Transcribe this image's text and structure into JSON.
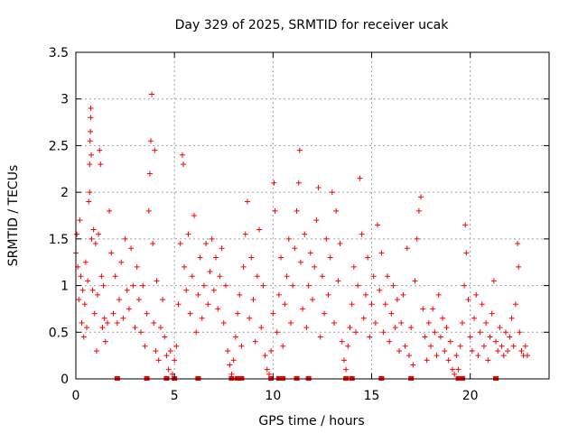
{
  "chart_data": {
    "type": "scatter",
    "title": "Day 329 of 2025, SRMTID for receiver ucak",
    "xlabel": "GPS time / hours",
    "ylabel": "SRMTID / TECUs",
    "xlim": [
      0,
      24
    ],
    "ylim": [
      0,
      3.5
    ],
    "x_ticks": [
      0,
      5,
      10,
      15,
      20
    ],
    "x_tick_labels": [
      "0",
      "5",
      "10",
      "15",
      "20"
    ],
    "y_ticks": [
      0,
      0.5,
      1,
      1.5,
      2,
      2.5,
      3,
      3.5
    ],
    "y_tick_labels": [
      "0",
      "0.5",
      "1",
      "1.5",
      "2",
      "2.5",
      "3",
      "3.5"
    ],
    "grid": true,
    "marker": "plus",
    "series": [
      {
        "name": "SRMTID",
        "color": "#ff0000",
        "points": [
          [
            0.0,
            1.35
          ],
          [
            0.05,
            1.55
          ],
          [
            0.1,
            1.2
          ],
          [
            0.15,
            0.85
          ],
          [
            0.2,
            1.7
          ],
          [
            0.25,
            1.1
          ],
          [
            0.3,
            0.6
          ],
          [
            0.35,
            0.95
          ],
          [
            0.4,
            0.45
          ],
          [
            0.45,
            0.8
          ],
          [
            0.5,
            1.25
          ],
          [
            0.55,
            0.55
          ],
          [
            0.6,
            1.05
          ],
          [
            0.65,
            1.9
          ],
          [
            0.7,
            2.0
          ],
          [
            0.7,
            2.3
          ],
          [
            0.72,
            2.55
          ],
          [
            0.74,
            2.65
          ],
          [
            0.75,
            2.8
          ],
          [
            0.76,
            2.9
          ],
          [
            0.78,
            2.4
          ],
          [
            0.8,
            1.5
          ],
          [
            0.85,
            0.95
          ],
          [
            0.9,
            1.6
          ],
          [
            0.95,
            0.7
          ],
          [
            1.0,
            1.45
          ],
          [
            1.05,
            0.3
          ],
          [
            1.1,
            0.9
          ],
          [
            1.15,
            1.55
          ],
          [
            1.2,
            2.45
          ],
          [
            1.25,
            2.3
          ],
          [
            1.3,
            1.1
          ],
          [
            1.35,
            0.55
          ],
          [
            1.4,
            1.0
          ],
          [
            1.45,
            0.65
          ],
          [
            1.5,
            0.4
          ],
          [
            1.6,
            0.6
          ],
          [
            1.7,
            1.8
          ],
          [
            1.8,
            1.35
          ],
          [
            1.9,
            0.7
          ],
          [
            2.0,
            1.1
          ],
          [
            2.1,
            0.6
          ],
          [
            2.2,
            0.85
          ],
          [
            2.3,
            1.25
          ],
          [
            2.4,
            0.65
          ],
          [
            2.5,
            1.5
          ],
          [
            2.6,
            0.95
          ],
          [
            2.7,
            0.75
          ],
          [
            2.8,
            1.4
          ],
          [
            2.9,
            1.0
          ],
          [
            3.0,
            0.55
          ],
          [
            3.1,
            1.2
          ],
          [
            3.2,
            0.85
          ],
          [
            3.3,
            0.5
          ],
          [
            3.4,
            1.0
          ],
          [
            3.5,
            0.35
          ],
          [
            3.6,
            0.7
          ],
          [
            3.7,
            1.8
          ],
          [
            3.75,
            2.2
          ],
          [
            3.8,
            2.55
          ],
          [
            3.85,
            3.05
          ],
          [
            3.9,
            1.45
          ],
          [
            3.95,
            0.6
          ],
          [
            4.0,
            2.45
          ],
          [
            4.05,
            0.3
          ],
          [
            4.1,
            1.05
          ],
          [
            4.2,
            0.2
          ],
          [
            4.3,
            0.55
          ],
          [
            4.4,
            0.85
          ],
          [
            4.5,
            0.45
          ],
          [
            4.6,
            0.25
          ],
          [
            4.7,
            0.1
          ],
          [
            4.8,
            0.3
          ],
          [
            4.9,
            0.05
          ],
          [
            5.0,
            0.2
          ],
          [
            5.1,
            0.35
          ],
          [
            5.2,
            0.8
          ],
          [
            5.3,
            1.45
          ],
          [
            5.4,
            2.4
          ],
          [
            5.45,
            2.3
          ],
          [
            5.5,
            1.2
          ],
          [
            5.6,
            0.95
          ],
          [
            5.7,
            1.55
          ],
          [
            5.8,
            0.7
          ],
          [
            5.9,
            1.1
          ],
          [
            6.0,
            1.75
          ],
          [
            6.1,
            0.5
          ],
          [
            6.2,
            0.9
          ],
          [
            6.3,
            1.3
          ],
          [
            6.4,
            0.65
          ],
          [
            6.5,
            1.0
          ],
          [
            6.6,
            1.45
          ],
          [
            6.7,
            0.8
          ],
          [
            6.8,
            1.15
          ],
          [
            6.9,
            1.5
          ],
          [
            7.0,
            0.95
          ],
          [
            7.1,
            1.3
          ],
          [
            7.2,
            0.75
          ],
          [
            7.3,
            1.1
          ],
          [
            7.4,
            1.4
          ],
          [
            7.5,
            0.6
          ],
          [
            7.6,
            1.0
          ],
          [
            7.7,
            0.3
          ],
          [
            7.8,
            0.15
          ],
          [
            7.9,
            0.05
          ],
          [
            8.0,
            0.2
          ],
          [
            8.1,
            0.45
          ],
          [
            8.2,
            0.7
          ],
          [
            8.3,
            0.9
          ],
          [
            8.4,
            0.35
          ],
          [
            8.5,
            1.2
          ],
          [
            8.6,
            1.55
          ],
          [
            8.7,
            1.9
          ],
          [
            8.8,
            0.65
          ],
          [
            8.9,
            1.3
          ],
          [
            9.0,
            0.85
          ],
          [
            9.1,
            0.4
          ],
          [
            9.2,
            1.1
          ],
          [
            9.3,
            1.6
          ],
          [
            9.4,
            0.55
          ],
          [
            9.5,
            1.0
          ],
          [
            9.6,
            0.25
          ],
          [
            9.7,
            0.1
          ],
          [
            9.8,
            0.05
          ],
          [
            9.9,
            0.3
          ],
          [
            10.0,
            0.7
          ],
          [
            10.05,
            2.1
          ],
          [
            10.1,
            1.8
          ],
          [
            10.2,
            0.5
          ],
          [
            10.3,
            0.9
          ],
          [
            10.4,
            1.3
          ],
          [
            10.5,
            0.35
          ],
          [
            10.6,
            0.8
          ],
          [
            10.7,
            1.1
          ],
          [
            10.8,
            1.5
          ],
          [
            10.9,
            0.6
          ],
          [
            11.0,
            1.0
          ],
          [
            11.1,
            1.4
          ],
          [
            11.2,
            1.8
          ],
          [
            11.3,
            2.1
          ],
          [
            11.35,
            2.45
          ],
          [
            11.4,
            1.25
          ],
          [
            11.5,
            0.75
          ],
          [
            11.6,
            1.55
          ],
          [
            11.7,
            0.55
          ],
          [
            11.8,
            1.0
          ],
          [
            11.9,
            1.35
          ],
          [
            12.0,
            0.85
          ],
          [
            12.1,
            1.2
          ],
          [
            12.2,
            1.7
          ],
          [
            12.3,
            2.05
          ],
          [
            12.4,
            0.45
          ],
          [
            12.5,
            1.1
          ],
          [
            12.6,
            0.7
          ],
          [
            12.7,
            1.5
          ],
          [
            12.8,
            0.9
          ],
          [
            12.9,
            1.3
          ],
          [
            13.0,
            2.0
          ],
          [
            13.1,
            0.6
          ],
          [
            13.2,
            1.8
          ],
          [
            13.3,
            1.05
          ],
          [
            13.4,
            1.45
          ],
          [
            13.5,
            0.4
          ],
          [
            13.6,
            0.2
          ],
          [
            13.7,
            0.1
          ],
          [
            13.8,
            0.35
          ],
          [
            13.9,
            0.55
          ],
          [
            14.0,
            0.8
          ],
          [
            14.1,
            1.2
          ],
          [
            14.2,
            0.5
          ],
          [
            14.3,
            1.0
          ],
          [
            14.4,
            2.15
          ],
          [
            14.5,
            1.55
          ],
          [
            14.6,
            0.65
          ],
          [
            14.7,
            0.9
          ],
          [
            14.8,
            1.3
          ],
          [
            14.9,
            0.45
          ],
          [
            15.0,
            0.8
          ],
          [
            15.1,
            1.1
          ],
          [
            15.2,
            0.6
          ],
          [
            15.3,
            1.65
          ],
          [
            15.4,
            0.95
          ],
          [
            15.5,
            1.35
          ],
          [
            15.6,
            0.5
          ],
          [
            15.7,
            0.8
          ],
          [
            15.8,
            1.1
          ],
          [
            15.9,
            0.4
          ],
          [
            16.0,
            0.7
          ],
          [
            16.1,
            1.0
          ],
          [
            16.2,
            0.55
          ],
          [
            16.3,
            0.85
          ],
          [
            16.4,
            0.3
          ],
          [
            16.5,
            0.6
          ],
          [
            16.6,
            0.9
          ],
          [
            16.7,
            0.35
          ],
          [
            16.8,
            1.4
          ],
          [
            16.9,
            0.25
          ],
          [
            17.0,
            0.55
          ],
          [
            17.1,
            0.15
          ],
          [
            17.2,
            1.05
          ],
          [
            17.3,
            1.5
          ],
          [
            17.4,
            1.8
          ],
          [
            17.5,
            1.95
          ],
          [
            17.6,
            0.75
          ],
          [
            17.7,
            0.45
          ],
          [
            17.8,
            0.2
          ],
          [
            17.9,
            0.6
          ],
          [
            18.0,
            0.35
          ],
          [
            18.1,
            0.75
          ],
          [
            18.2,
            0.5
          ],
          [
            18.3,
            0.25
          ],
          [
            18.4,
            0.9
          ],
          [
            18.5,
            0.45
          ],
          [
            18.6,
            0.65
          ],
          [
            18.7,
            0.3
          ],
          [
            18.8,
            0.55
          ],
          [
            18.9,
            0.2
          ],
          [
            19.0,
            0.4
          ],
          [
            19.1,
            0.1
          ],
          [
            19.2,
            0.05
          ],
          [
            19.3,
            0.25
          ],
          [
            19.4,
            0.1
          ],
          [
            19.5,
            0.35
          ],
          [
            19.6,
            0.6
          ],
          [
            19.7,
            1.0
          ],
          [
            19.75,
            1.65
          ],
          [
            19.8,
            1.35
          ],
          [
            19.9,
            0.85
          ],
          [
            20.0,
            0.45
          ],
          [
            20.1,
            0.3
          ],
          [
            20.2,
            0.65
          ],
          [
            20.3,
            0.9
          ],
          [
            20.4,
            0.25
          ],
          [
            20.5,
            0.5
          ],
          [
            20.6,
            0.8
          ],
          [
            20.7,
            0.35
          ],
          [
            20.8,
            0.6
          ],
          [
            20.9,
            0.2
          ],
          [
            21.0,
            0.45
          ],
          [
            21.1,
            0.7
          ],
          [
            21.2,
            1.05
          ],
          [
            21.3,
            0.4
          ],
          [
            21.4,
            0.3
          ],
          [
            21.5,
            0.55
          ],
          [
            21.6,
            0.35
          ],
          [
            21.7,
            0.25
          ],
          [
            21.8,
            0.5
          ],
          [
            21.9,
            0.3
          ],
          [
            22.0,
            0.45
          ],
          [
            22.1,
            0.65
          ],
          [
            22.2,
            0.35
          ],
          [
            22.3,
            0.8
          ],
          [
            22.4,
            1.45
          ],
          [
            22.45,
            1.2
          ],
          [
            22.5,
            0.5
          ],
          [
            22.6,
            0.3
          ],
          [
            22.7,
            0.25
          ],
          [
            22.8,
            0.35
          ],
          [
            22.9,
            0.25
          ]
        ]
      }
    ],
    "zero_points": [
      2.1,
      3.6,
      4.6,
      5.0,
      6.2,
      7.9,
      8.2,
      8.4,
      9.9,
      10.3,
      10.5,
      11.2,
      11.8,
      13.7,
      14.0,
      15.5,
      17.0,
      19.4,
      19.6,
      21.3
    ]
  }
}
